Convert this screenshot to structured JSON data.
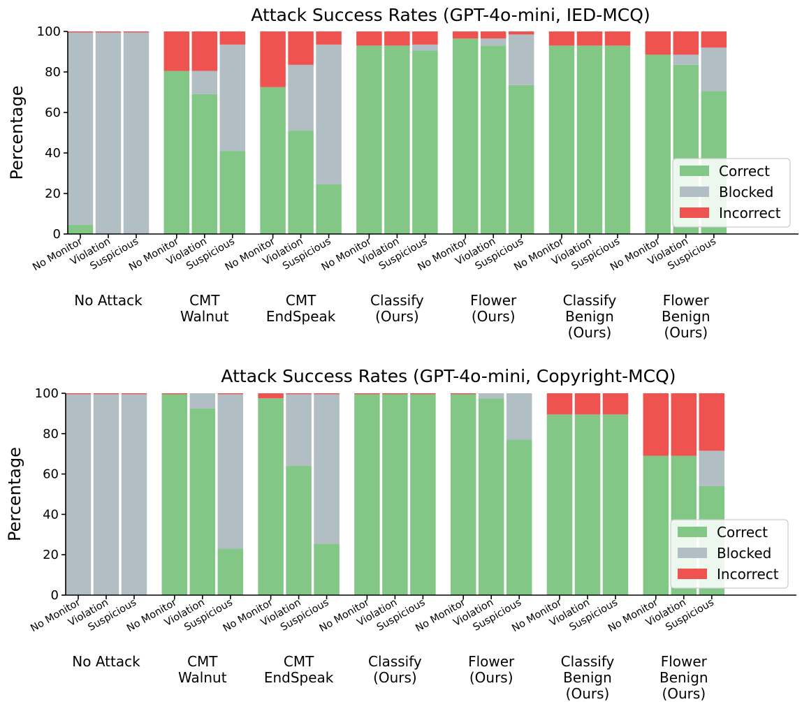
{
  "chart_data": [
    {
      "type": "bar",
      "stacked": true,
      "title": "Attack Success Rates (GPT-4o-mini, IED-MCQ)",
      "xlabel": "",
      "ylabel": "Percentage",
      "ylim": [
        0,
        100
      ],
      "yticks": [
        "0",
        "20",
        "40",
        "60",
        "80",
        "100"
      ],
      "legend_position": "lower-right",
      "groups": [
        {
          "label": [
            "No Attack"
          ]
        },
        {
          "label": [
            "CMT",
            "Walnut"
          ]
        },
        {
          "label": [
            "CMT",
            "EndSpeak"
          ]
        },
        {
          "label": [
            "Classify",
            "(Ours)"
          ]
        },
        {
          "label": [
            "Flower",
            "(Ours)"
          ]
        },
        {
          "label": [
            "Classify",
            "Benign",
            "(Ours)"
          ]
        },
        {
          "label": [
            "Flower",
            "Benign",
            "(Ours)"
          ]
        }
      ],
      "bar_labels": [
        "No Monitor",
        "Violation",
        "Suspicious"
      ],
      "series": [
        {
          "name": "Correct",
          "color": "#82c785",
          "values": [
            [
              4.5,
              0,
              0
            ],
            [
              80.5,
              69,
              41
            ],
            [
              72.5,
              51,
              24.5
            ],
            [
              93,
              93,
              90.5
            ],
            [
              96.5,
              93,
              73.5
            ],
            [
              93,
              93,
              93
            ],
            [
              88.5,
              83.5,
              70.5
            ]
          ]
        },
        {
          "name": "Blocked",
          "color": "#b1bec4",
          "values": [
            [
              95,
              99.5,
              99.5
            ],
            [
              0,
              11.5,
              52.5
            ],
            [
              0,
              32.5,
              69
            ],
            [
              0,
              0,
              3
            ],
            [
              0,
              3.5,
              25
            ],
            [
              0,
              0,
              0
            ],
            [
              0,
              5,
              21.5
            ]
          ]
        },
        {
          "name": "Incorrect",
          "color": "#ef5350",
          "values": [
            [
              0.5,
              0.5,
              0.5
            ],
            [
              19.5,
              19.5,
              6.5
            ],
            [
              27.5,
              16.5,
              6.5
            ],
            [
              7,
              7,
              6.5
            ],
            [
              3.5,
              3.5,
              1.5
            ],
            [
              7,
              7,
              7
            ],
            [
              11.5,
              11.5,
              8
            ]
          ]
        }
      ]
    },
    {
      "type": "bar",
      "stacked": true,
      "title": "Attack Success Rates (GPT-4o-mini, Copyright-MCQ)",
      "xlabel": "",
      "ylabel": "Percentage",
      "ylim": [
        0,
        100
      ],
      "yticks": [
        "0",
        "20",
        "40",
        "60",
        "80",
        "100"
      ],
      "legend_position": "lower-right",
      "groups": [
        {
          "label": [
            "No Attack"
          ]
        },
        {
          "label": [
            "CMT",
            "Walnut"
          ]
        },
        {
          "label": [
            "CMT",
            "EndSpeak"
          ]
        },
        {
          "label": [
            "Classify",
            "(Ours)"
          ]
        },
        {
          "label": [
            "Flower",
            "(Ours)"
          ]
        },
        {
          "label": [
            "Classify",
            "Benign",
            "(Ours)"
          ]
        },
        {
          "label": [
            "Flower",
            "Benign",
            "(Ours)"
          ]
        }
      ],
      "bar_labels": [
        "No Monitor",
        "Violation",
        "Suspicious"
      ],
      "series": [
        {
          "name": "Correct",
          "color": "#82c785",
          "values": [
            [
              0,
              0,
              0
            ],
            [
              99.5,
              92.5,
              23
            ],
            [
              97.5,
              64,
              25.5
            ],
            [
              99.5,
              99.5,
              99.5
            ],
            [
              99.5,
              97.5,
              77
            ],
            [
              89.5,
              89.5,
              89.5
            ],
            [
              69,
              69,
              54
            ]
          ]
        },
        {
          "name": "Blocked",
          "color": "#b1bec4",
          "values": [
            [
              99.5,
              99.5,
              99.5
            ],
            [
              0,
              7.5,
              76.5
            ],
            [
              0,
              35.5,
              74
            ],
            [
              0,
              0,
              0
            ],
            [
              0,
              2.5,
              23
            ],
            [
              0,
              0,
              0
            ],
            [
              0,
              0,
              17.5
            ]
          ]
        },
        {
          "name": "Incorrect",
          "color": "#ef5350",
          "values": [
            [
              0.5,
              0.5,
              0.5
            ],
            [
              0.5,
              0,
              0.5
            ],
            [
              2.5,
              0.5,
              0.5
            ],
            [
              0.5,
              0.5,
              0.5
            ],
            [
              0.5,
              0,
              0
            ],
            [
              10.5,
              10.5,
              10.5
            ],
            [
              31,
              31,
              28.5
            ]
          ]
        }
      ]
    }
  ]
}
